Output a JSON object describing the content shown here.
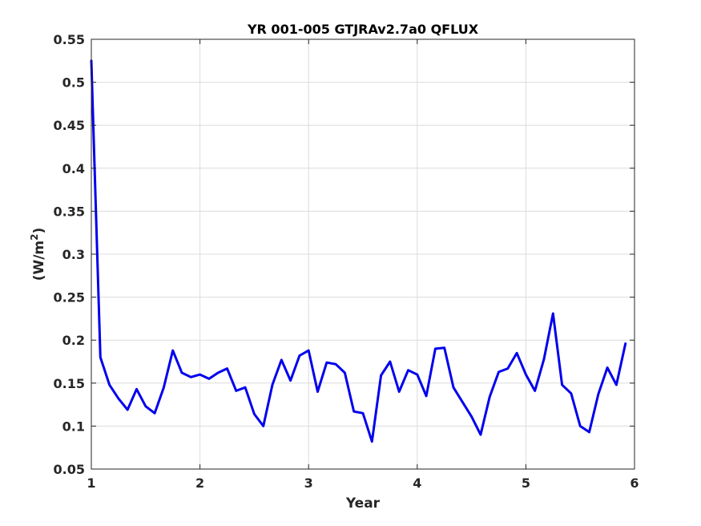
{
  "chart_data": {
    "type": "line",
    "title": "YR 001-005 GTJRAv2.7a0 QFLUX",
    "xlabel": "Year",
    "ylabel": "(W/m",
    "ylabel_sup": "2",
    "ylabel_close": ")",
    "xlim": [
      1,
      6
    ],
    "ylim": [
      0.05,
      0.55
    ],
    "xticks": [
      1,
      2,
      3,
      4,
      5,
      6
    ],
    "xtick_labels": [
      "1",
      "2",
      "3",
      "4",
      "5",
      "6"
    ],
    "yticks": [
      0.05,
      0.1,
      0.15,
      0.2,
      0.25,
      0.3,
      0.35,
      0.4,
      0.45,
      0.5,
      0.55
    ],
    "ytick_labels": [
      "0.05",
      "0.1",
      "0.15",
      "0.2",
      "0.25",
      "0.3",
      "0.35",
      "0.4",
      "0.45",
      "0.5",
      "0.55"
    ],
    "grid": true,
    "line_color": "#0000ee",
    "series": [
      {
        "x": [
          1.0,
          1.0833,
          1.1667,
          1.25,
          1.3333,
          1.4167,
          1.5,
          1.5833,
          1.6667,
          1.75,
          1.8333,
          1.9167,
          2.0,
          2.0833,
          2.1667,
          2.25,
          2.3333,
          2.4167,
          2.5,
          2.5833,
          2.6667,
          2.75,
          2.8333,
          2.9167,
          3.0,
          3.0833,
          3.1667,
          3.25,
          3.3333,
          3.4167,
          3.5,
          3.5833,
          3.6667,
          3.75,
          3.8333,
          3.9167,
          4.0,
          4.0833,
          4.1667,
          4.25,
          4.3333,
          4.4167,
          4.5,
          4.5833,
          4.6667,
          4.75,
          4.8333,
          4.9167,
          5.0,
          5.0833,
          5.1667,
          5.25,
          5.3333,
          5.4167,
          5.5,
          5.5833,
          5.6667,
          5.75,
          5.8333,
          5.9167
        ],
        "values": [
          0.525,
          0.18,
          0.148,
          0.132,
          0.119,
          0.143,
          0.123,
          0.115,
          0.145,
          0.188,
          0.162,
          0.157,
          0.16,
          0.155,
          0.162,
          0.167,
          0.141,
          0.145,
          0.114,
          0.1,
          0.148,
          0.177,
          0.153,
          0.182,
          0.188,
          0.14,
          0.174,
          0.172,
          0.162,
          0.117,
          0.115,
          0.082,
          0.159,
          0.175,
          0.14,
          0.165,
          0.16,
          0.135,
          0.19,
          0.191,
          0.145,
          0.128,
          0.111,
          0.09,
          0.134,
          0.163,
          0.167,
          0.185,
          0.16,
          0.141,
          0.178,
          0.231,
          0.148,
          0.138,
          0.1,
          0.093,
          0.137,
          0.168,
          0.148,
          0.196
        ]
      }
    ]
  }
}
